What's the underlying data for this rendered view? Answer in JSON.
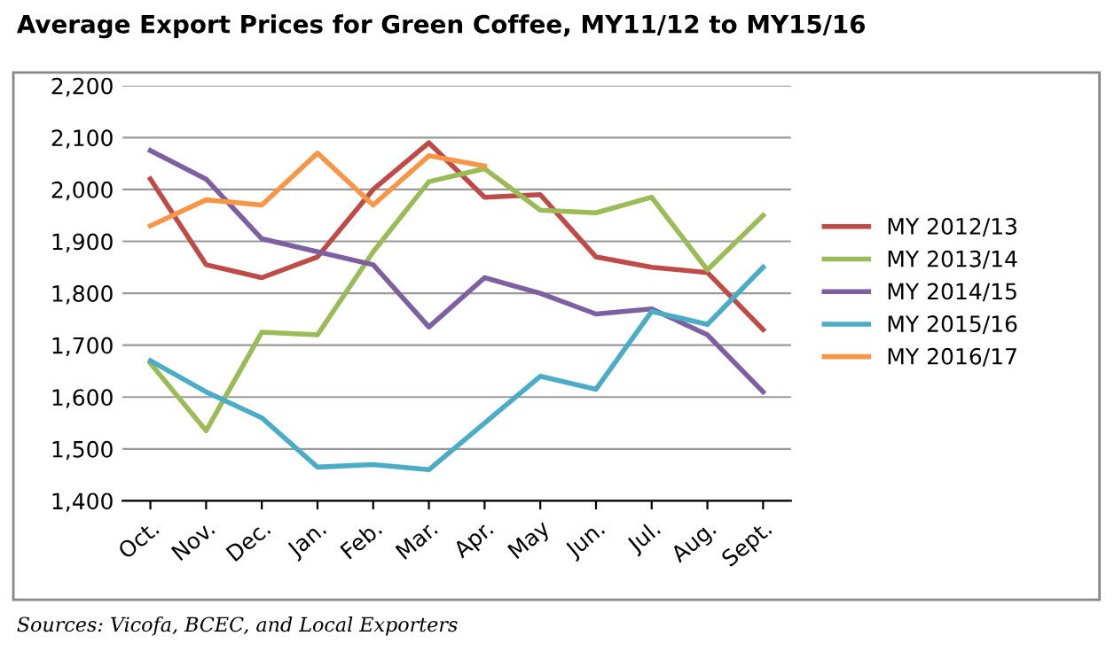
{
  "chart_data": {
    "type": "line",
    "title": "Average Export Prices for Green Coffee, MY11/12 to MY15/16",
    "categories": [
      "Oct.",
      "Nov.",
      "Dec.",
      "Jan.",
      "Feb.",
      "Mar.",
      "Apr.",
      "May",
      "Jun.",
      "Jul.",
      "Aug.",
      "Sept."
    ],
    "series": [
      {
        "name": "MY 2012/13",
        "color": "#be4b48",
        "values": [
          2020,
          1855,
          1830,
          1870,
          2000,
          2090,
          1985,
          1990,
          1870,
          1850,
          1840,
          1730
        ]
      },
      {
        "name": "MY 2013/14",
        "color": "#9bbb59",
        "values": [
          1665,
          1535,
          1725,
          1720,
          1880,
          2015,
          2040,
          1960,
          1955,
          1985,
          1845,
          1950
        ]
      },
      {
        "name": "MY 2014/15",
        "color": "#7d60a0",
        "values": [
          2075,
          2020,
          1905,
          1880,
          1855,
          1735,
          1830,
          1800,
          1760,
          1770,
          1720,
          1610
        ]
      },
      {
        "name": "MY 2015/16",
        "color": "#4bacc6",
        "values": [
          1670,
          1610,
          1560,
          1465,
          1470,
          1460,
          1550,
          1640,
          1615,
          1765,
          1740,
          1850
        ]
      },
      {
        "name": "MY 2016/17",
        "color": "#f79646",
        "values": [
          1930,
          1980,
          1970,
          2070,
          1970,
          2065,
          2045,
          null,
          null,
          null,
          null,
          null
        ]
      }
    ],
    "ylim": [
      1400,
      2200
    ],
    "yticks": [
      {
        "value": 1400,
        "label": "1,400"
      },
      {
        "value": 1500,
        "label": "1,500"
      },
      {
        "value": 1600,
        "label": "1,600"
      },
      {
        "value": 1700,
        "label": "1,700"
      },
      {
        "value": 1800,
        "label": "1,800"
      },
      {
        "value": 1900,
        "label": "1,900"
      },
      {
        "value": 2000,
        "label": "2,000"
      },
      {
        "value": 2100,
        "label": "2,100"
      },
      {
        "value": 2200,
        "label": "2,200"
      }
    ],
    "grid": "y",
    "legend": "right",
    "marker": "none",
    "line_style": "solid",
    "annotations": [
      "Sources: Vicofa, BCEC, and Local Exporters"
    ]
  }
}
